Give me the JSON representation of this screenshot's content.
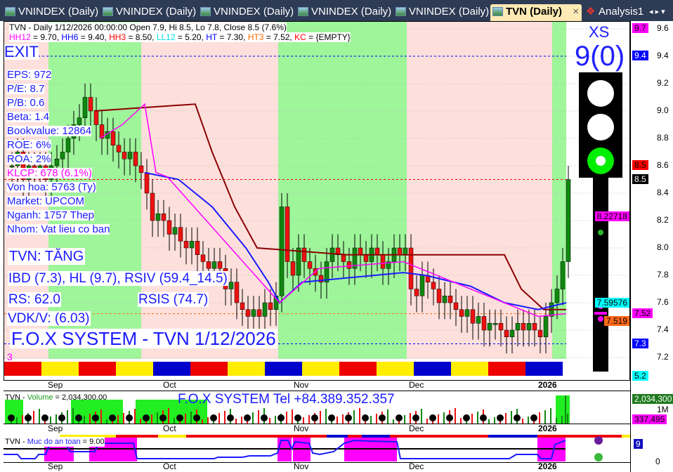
{
  "tabs": [
    {
      "label": "VNINDEX (Daily)"
    },
    {
      "label": "VNINDEX (Daily)"
    },
    {
      "label": "VNINDEX (Daily)"
    },
    {
      "label": "VNINDEX (Daily)"
    },
    {
      "label": "VNINDEX (Daily)"
    },
    {
      "label": "TVN (Daily)",
      "active": true
    },
    {
      "label": "Analysis1"
    }
  ],
  "tab_close": "×",
  "tab_nav": "◂ ▸ ▾",
  "header": {
    "line1": "TVN - Daily 1/12/2026 00:00:00 Open 7.9, Hi 8.5, Lo 7.8, Close 8.5 (7.6%)",
    "indicators": [
      {
        "name": "HH12",
        "value": " = 9.70, ",
        "color": "#ff00ff"
      },
      {
        "name": "HH6",
        "value": " = 9.40, ",
        "color": "#0000ff"
      },
      {
        "name": "HH3",
        "value": " = 8.50, ",
        "color": "#ff0000"
      },
      {
        "name": "LL12",
        "value": " = 5.20, ",
        "color": "#00e0e0"
      },
      {
        "name": "HT",
        "value": "  = 7.30, ",
        "color": "#0000ff"
      },
      {
        "name": "HT3",
        "value": "  = 7.52, ",
        "color": "#ff6a00"
      },
      {
        "name": "KC",
        "value": " = {EMPTY}",
        "color": "#ff0000"
      }
    ]
  },
  "overlay": {
    "exit": "EXIT",
    "eps": "EPS: 972",
    "pe": "P/E: 8.7",
    "pb": "P/B: 0.6",
    "beta": "Beta: 1.4",
    "bookvalue": "Bookvalue: 12864",
    "roe": "ROE: 6%",
    "roa": "ROA: 2%",
    "klcp": "KLCP: 678 (6.1%)",
    "vonhoa": "Von hoa: 5763 (Ty)",
    "market": "Market: UPCOM",
    "nganh": "Nganh: 1757 Thep",
    "nhom": "Nhom: Vat lieu co ban",
    "trend": "TVN: TĂNG",
    "ibd": "IBD (7.3), HL (9.7), RSIV (59.4_14.5)",
    "rs": "RS: 62.0",
    "rsis": "RSIS (74.7)",
    "vdk": "VDK/V:  (6.03)",
    "fox": "F.O.X SYSTEM - TVN 1/12/2026",
    "num3": "3"
  },
  "signal": {
    "label": "XS",
    "value": "9(0)",
    "light": "green"
  },
  "price_axis": {
    "ticks": [
      "9.6",
      "9.4",
      "9.2",
      "9.0",
      "8.8",
      "8.6",
      "8.4",
      "8.2",
      "8.0",
      "7.8",
      "7.6",
      "7.4",
      "7.2"
    ],
    "labels": [
      {
        "text": "9.7",
        "bg": "#ff00ff",
        "fg": "#000",
        "p": 9.6
      },
      {
        "text": "9.4",
        "bg": "#0000ff",
        "fg": "#fff",
        "p": 9.4
      },
      {
        "text": "8.5",
        "bg": "#ff0000",
        "fg": "#000",
        "p": 8.6
      },
      {
        "text": "8.5",
        "bg": "#000000",
        "fg": "#fff",
        "p": 8.5
      },
      {
        "text": "8.22718",
        "bg": "#ff00ff",
        "fg": "#000",
        "p": 8.227
      },
      {
        "text": "7.59576",
        "bg": "#00ffff",
        "fg": "#000",
        "p": 7.596
      },
      {
        "text": "7.52",
        "bg": "#ff00ff",
        "fg": "#000",
        "p": 7.52
      },
      {
        "text": "7.519",
        "bg": "#ff6a1a",
        "fg": "#000",
        "p": 7.46
      },
      {
        "text": "7.3",
        "bg": "#0000ff",
        "fg": "#fff",
        "p": 7.3
      },
      {
        "text": "5.2",
        "bg": "#00ffff",
        "fg": "#000",
        "p": 7.06
      }
    ]
  },
  "date_axis": [
    "Sep",
    "Oct",
    "Nov",
    "Dec",
    "2026"
  ],
  "volume": {
    "label_prefix": "TVN - ",
    "label_name": "Volume",
    "label_value": " = 2,034,300.00",
    "banner": "F.O.X SYSTEM Tel +84.389.352.357",
    "axis": [
      {
        "text": "2,034,300",
        "bg": "#1e7a1e",
        "fg": "#fff"
      },
      {
        "text": "1M",
        "bg": "transparent",
        "fg": "#000"
      },
      {
        "text": "337,495",
        "bg": "#ff00ff",
        "fg": "#000"
      }
    ]
  },
  "safety": {
    "label_prefix": "TVN - ",
    "label_name": "Muc do an toan",
    "label_value": " = 9.00",
    "axis_value": "9",
    "axis_zero": "0"
  },
  "chart_data": {
    "type": "candlestick",
    "symbol": "TVN",
    "ylim": [
      7.06,
      9.65
    ],
    "close": [
      8.6,
      8.7,
      8.5,
      8.6,
      8.55,
      8.6,
      8.5,
      8.6,
      8.65,
      8.7,
      8.8,
      8.9,
      8.95,
      9.1,
      9.0,
      8.9,
      8.8,
      8.85,
      8.75,
      8.7,
      8.65,
      8.7,
      8.6,
      8.55,
      8.4,
      8.2,
      8.25,
      8.2,
      8.1,
      8.15,
      8.05,
      8.0,
      8.05,
      7.95,
      7.9,
      7.85,
      7.9,
      7.85,
      7.7,
      7.75,
      7.6,
      7.55,
      7.5,
      7.55,
      7.5,
      7.6,
      7.55,
      7.65,
      8.3,
      7.9,
      7.8,
      8.0,
      7.9,
      7.85,
      7.8,
      7.75,
      7.9,
      8.0,
      7.95,
      7.9,
      7.85,
      8.0,
      7.95,
      7.9,
      8.0,
      7.95,
      7.85,
      7.9,
      8.0,
      7.95,
      8.0,
      7.7,
      7.65,
      7.8,
      7.75,
      7.7,
      7.6,
      7.65,
      7.6,
      7.55,
      7.5,
      7.55,
      7.45,
      7.5,
      7.4,
      7.45,
      7.45,
      7.4,
      7.35,
      7.4,
      7.45,
      7.4,
      7.45,
      7.4,
      7.35,
      7.5,
      7.6,
      7.7,
      7.9,
      8.5
    ],
    "brown_line": [
      [
        15,
        9.0
      ],
      [
        33,
        9.05
      ],
      [
        36,
        8.7
      ],
      [
        40,
        8.3
      ],
      [
        44,
        8.0
      ],
      [
        60,
        7.95
      ],
      [
        72,
        7.95
      ],
      [
        88,
        7.95
      ],
      [
        91,
        7.7
      ],
      [
        95,
        7.55
      ],
      [
        99,
        7.55
      ]
    ],
    "blue_line": [
      [
        24,
        8.55
      ],
      [
        30,
        8.5
      ],
      [
        36,
        8.3
      ],
      [
        42,
        8.0
      ],
      [
        46,
        7.75
      ],
      [
        48,
        7.6
      ],
      [
        52,
        7.75
      ],
      [
        70,
        7.82
      ],
      [
        74,
        7.8
      ],
      [
        82,
        7.72
      ],
      [
        88,
        7.6
      ],
      [
        94,
        7.55
      ],
      [
        99,
        7.6
      ]
    ],
    "magenta_line": [
      [
        16,
        8.8
      ],
      [
        20,
        8.9
      ],
      [
        24,
        9.05
      ],
      [
        26,
        8.55
      ],
      [
        28,
        8.52
      ],
      [
        48,
        7.6
      ],
      [
        55,
        7.85
      ],
      [
        70,
        7.9
      ],
      [
        94,
        7.5
      ],
      [
        99,
        7.52
      ]
    ],
    "hlines": [
      {
        "p": 9.4,
        "color": "#0000ff"
      },
      {
        "p": 8.5,
        "color": "#ff0000"
      },
      {
        "p": 7.52,
        "color": "#ff6a00"
      },
      {
        "p": 7.3,
        "color": "#0000ff"
      }
    ],
    "bands": [
      "pink",
      "green",
      "pink",
      "green",
      "pink",
      "green"
    ]
  }
}
